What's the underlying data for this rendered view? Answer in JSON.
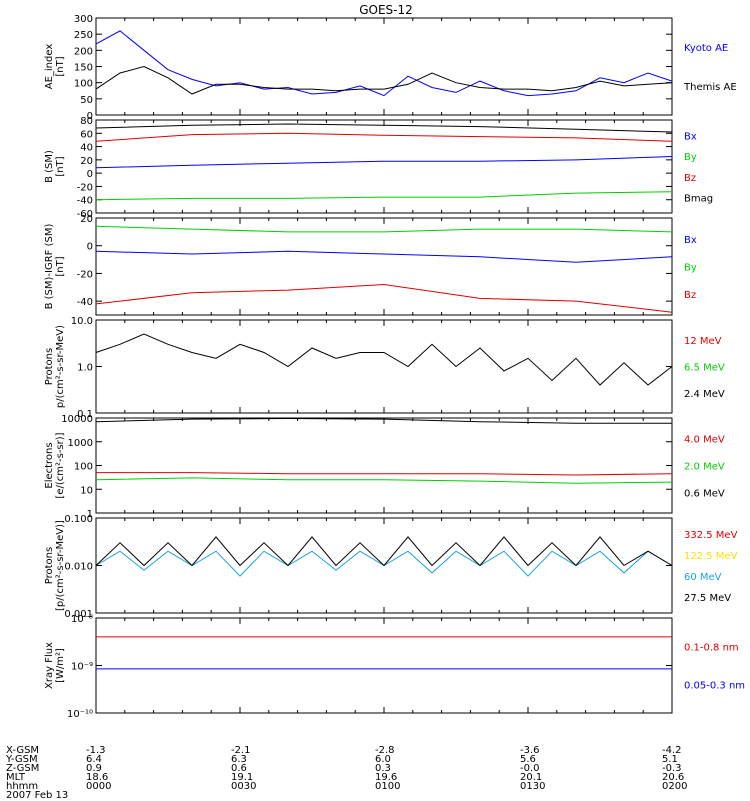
{
  "title": "GOES-12",
  "colors": {
    "black": "#000000",
    "blue": "#0000ff",
    "green": "#00d000",
    "red": "#e00000",
    "yellow": "#ffe000",
    "cyan": "#1aa3dd"
  },
  "chart_data": [
    {
      "id": "ae",
      "type": "line",
      "ylabel": [
        "AE_index",
        "[nT]"
      ],
      "ylim": [
        0,
        300
      ],
      "yticks": [
        "0",
        "50",
        "100",
        "150",
        "200",
        "250",
        "300"
      ],
      "x_range": [
        "0000",
        "0200"
      ],
      "series": [
        {
          "name": "Kyoto AE",
          "color": "blue",
          "x": [
            0,
            5,
            10,
            15,
            20,
            25,
            30,
            35,
            40,
            45,
            50,
            55,
            60,
            65,
            70,
            75,
            80,
            85,
            90,
            95,
            100,
            105,
            110,
            115,
            120
          ],
          "values": [
            220,
            260,
            200,
            140,
            110,
            90,
            100,
            80,
            85,
            65,
            70,
            90,
            60,
            120,
            85,
            70,
            105,
            75,
            60,
            65,
            75,
            115,
            100,
            130,
            105
          ]
        },
        {
          "name": "Themis AE",
          "color": "black",
          "x": [
            0,
            5,
            10,
            15,
            20,
            25,
            30,
            35,
            40,
            45,
            50,
            55,
            60,
            65,
            70,
            75,
            80,
            85,
            90,
            95,
            100,
            105,
            110,
            115,
            120
          ],
          "values": [
            80,
            130,
            150,
            115,
            65,
            95,
            95,
            85,
            80,
            80,
            75,
            80,
            80,
            95,
            130,
            100,
            85,
            80,
            80,
            75,
            85,
            105,
            90,
            95,
            100
          ]
        }
      ]
    },
    {
      "id": "bsm",
      "type": "line",
      "ylabel": [
        "B (SM)",
        "[nT]"
      ],
      "ylim": [
        -60,
        80
      ],
      "yticks": [
        "-60",
        "-40",
        "-20",
        "0",
        "20",
        "40",
        "60",
        "80"
      ],
      "series": [
        {
          "name": "Bx",
          "color": "blue",
          "x": [
            0,
            20,
            40,
            60,
            80,
            100,
            120
          ],
          "values": [
            8,
            12,
            15,
            18,
            18,
            20,
            25
          ]
        },
        {
          "name": "By",
          "color": "green",
          "x": [
            0,
            20,
            40,
            60,
            80,
            100,
            120
          ],
          "values": [
            -40,
            -38,
            -38,
            -36,
            -36,
            -30,
            -28
          ]
        },
        {
          "name": "Bz",
          "color": "red",
          "x": [
            0,
            20,
            40,
            60,
            80,
            100,
            120
          ],
          "values": [
            48,
            58,
            60,
            57,
            55,
            53,
            48
          ]
        },
        {
          "name": "Bmag",
          "color": "black",
          "x": [
            0,
            20,
            40,
            60,
            80,
            100,
            120
          ],
          "values": [
            68,
            72,
            74,
            72,
            70,
            66,
            62
          ]
        }
      ]
    },
    {
      "id": "bdiff",
      "type": "line",
      "ylabel": [
        "B (SM)-IGRF (SM)",
        "[nT]"
      ],
      "ylim": [
        -50,
        20
      ],
      "yticks": [
        "-40",
        "-20",
        "0",
        "20"
      ],
      "series": [
        {
          "name": "Bx",
          "color": "blue",
          "x": [
            0,
            20,
            40,
            60,
            80,
            100,
            120
          ],
          "values": [
            -4,
            -6,
            -4,
            -6,
            -8,
            -12,
            -8
          ]
        },
        {
          "name": "By",
          "color": "green",
          "x": [
            0,
            20,
            40,
            60,
            80,
            100,
            120
          ],
          "values": [
            14,
            12,
            10,
            10,
            12,
            12,
            10
          ]
        },
        {
          "name": "Bz",
          "color": "red",
          "x": [
            0,
            20,
            40,
            60,
            80,
            100,
            120
          ],
          "values": [
            -42,
            -34,
            -32,
            -28,
            -38,
            -40,
            -48
          ]
        }
      ]
    },
    {
      "id": "protons1",
      "type": "line",
      "log": true,
      "ylabel": [
        "Protons",
        "p/(cm²-s-sr-MeV)"
      ],
      "ylim": [
        0.1,
        10
      ],
      "yticks": [
        "0.1",
        "1.0",
        "10.0"
      ],
      "series": [
        {
          "name": "12 MeV",
          "color": "red",
          "x": [],
          "values": []
        },
        {
          "name": "6.5 MeV",
          "color": "green",
          "x": [],
          "values": []
        },
        {
          "name": "2.4 MeV",
          "color": "black",
          "x": [
            0,
            5,
            10,
            15,
            20,
            25,
            30,
            35,
            40,
            45,
            50,
            55,
            60,
            65,
            70,
            75,
            80,
            85,
            90,
            95,
            100,
            105,
            110,
            115,
            120
          ],
          "values": [
            2,
            3,
            5,
            3,
            2,
            1.5,
            3,
            2,
            1,
            2.5,
            1.5,
            2,
            2,
            1,
            3,
            1,
            2.5,
            0.8,
            1.5,
            0.5,
            1.5,
            0.4,
            1.2,
            0.4,
            1
          ]
        }
      ]
    },
    {
      "id": "electrons",
      "type": "line",
      "log": true,
      "ylabel": [
        "Electrons",
        "[e/(cm²-s-sr)]"
      ],
      "ylim": [
        1,
        10000
      ],
      "yticks": [
        "1",
        "10",
        "100",
        "1000",
        "10000"
      ],
      "series": [
        {
          "name": "4.0 MeV",
          "color": "red",
          "x": [
            0,
            20,
            40,
            60,
            80,
            100,
            120
          ],
          "values": [
            50,
            50,
            45,
            45,
            45,
            40,
            45
          ]
        },
        {
          "name": "2.0 MeV",
          "color": "green",
          "x": [
            0,
            20,
            40,
            60,
            80,
            100,
            120
          ],
          "values": [
            25,
            30,
            25,
            25,
            22,
            18,
            20
          ]
        },
        {
          "name": "0.6 MeV",
          "color": "black",
          "x": [
            0,
            20,
            40,
            60,
            80,
            100,
            120
          ],
          "values": [
            7000,
            9000,
            9500,
            9000,
            7000,
            6000,
            6000
          ]
        }
      ]
    },
    {
      "id": "protons2",
      "type": "line",
      "log": true,
      "ylabel": [
        "Protons",
        "[p/(cm²-s-sr-MeV)]"
      ],
      "ylim": [
        0.001,
        0.1
      ],
      "yticks": [
        "0.001",
        "0.010",
        "0.100"
      ],
      "series": [
        {
          "name": "332.5 MeV",
          "color": "red",
          "x": [],
          "values": []
        },
        {
          "name": "122.5 MeV",
          "color": "yellow",
          "x": [],
          "values": []
        },
        {
          "name": "60 MeV",
          "color": "cyan",
          "x": [
            0,
            5,
            10,
            15,
            20,
            25,
            30,
            35,
            40,
            45,
            50,
            55,
            60,
            65,
            70,
            75,
            80,
            85,
            90,
            95,
            100,
            105,
            110,
            115,
            120
          ],
          "values": [
            0.01,
            0.02,
            0.008,
            0.02,
            0.01,
            0.02,
            0.006,
            0.02,
            0.01,
            0.02,
            0.008,
            0.02,
            0.01,
            0.02,
            0.007,
            0.02,
            0.01,
            0.02,
            0.006,
            0.02,
            0.01,
            0.02,
            0.007,
            0.02,
            0.01
          ]
        },
        {
          "name": "27.5 MeV",
          "color": "black",
          "x": [
            0,
            5,
            10,
            15,
            20,
            25,
            30,
            35,
            40,
            45,
            50,
            55,
            60,
            65,
            70,
            75,
            80,
            85,
            90,
            95,
            100,
            105,
            110,
            115,
            120
          ],
          "values": [
            0.01,
            0.03,
            0.01,
            0.03,
            0.01,
            0.04,
            0.01,
            0.03,
            0.01,
            0.04,
            0.01,
            0.03,
            0.01,
            0.04,
            0.01,
            0.03,
            0.01,
            0.04,
            0.01,
            0.03,
            0.01,
            0.04,
            0.01,
            0.02,
            0.01
          ]
        }
      ]
    },
    {
      "id": "xray",
      "type": "line",
      "log": true,
      "ylabel": [
        "Xray  Flux",
        "[W/m²]"
      ],
      "ylim": [
        1e-10,
        1e-08
      ],
      "yticks": [
        "10⁻¹⁰",
        "10⁻⁹",
        "10⁻⁸"
      ],
      "series": [
        {
          "name": "0.1-0.8 nm",
          "color": "red",
          "x": [
            0,
            120
          ],
          "values": [
            4e-09,
            4e-09
          ]
        },
        {
          "name": "0.05-0.3 nm",
          "color": "blue",
          "x": [
            0,
            120
          ],
          "values": [
            8.5e-10,
            8.5e-10
          ]
        }
      ]
    }
  ],
  "orbit": {
    "rows": [
      {
        "label": "X-GSM",
        "values": [
          "-1.3",
          "-2.1",
          "-2.8",
          "-3.6",
          "-4.2"
        ]
      },
      {
        "label": "Y-GSM",
        "values": [
          "6.4",
          "6.3",
          "6.0",
          "5.6",
          "5.1"
        ]
      },
      {
        "label": "Z-GSM",
        "values": [
          "0.9",
          "0.6",
          "0.3",
          "-0.0",
          "-0.3"
        ]
      },
      {
        "label": "MLT",
        "values": [
          "18.6",
          "19.1",
          "19.6",
          "20.1",
          "20.6"
        ]
      },
      {
        "label": "hhmm",
        "values": [
          "0000",
          "0030",
          "0100",
          "0130",
          "0200"
        ]
      }
    ],
    "date": "2007 Feb 13"
  }
}
